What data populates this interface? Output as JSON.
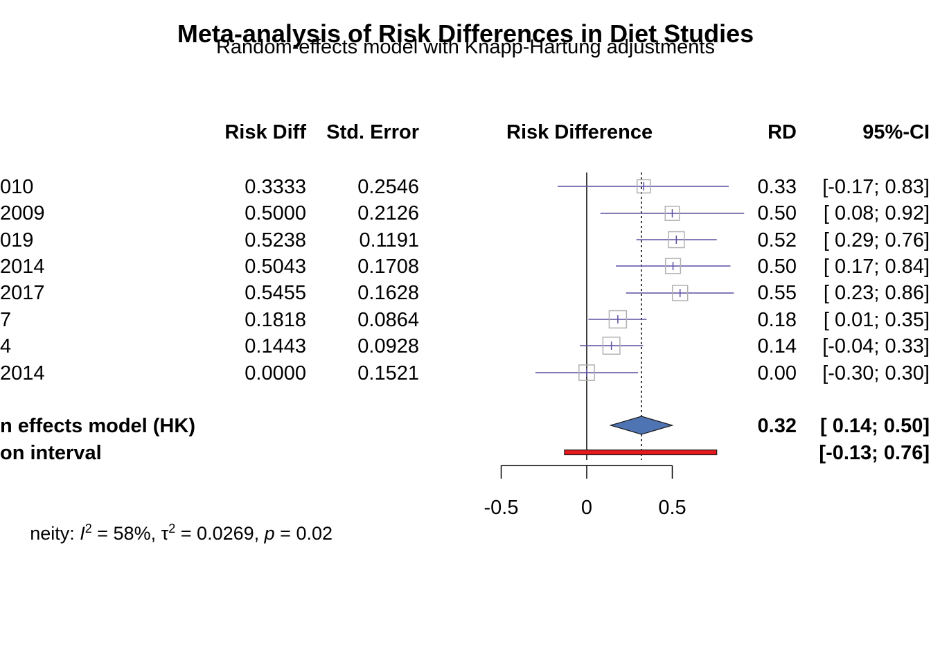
{
  "header": {
    "title": "Meta-analysis of Risk Differences in Diet Studies",
    "subtitle": "Random-effects model with Knapp-Hartung adjustments"
  },
  "columns": {
    "risk_diff": "Risk Diff",
    "std_error": "Std. Error",
    "plot": "Risk Difference",
    "rd": "RD",
    "ci": "95%-CI"
  },
  "studies": [
    {
      "label": "010",
      "risk_diff": "0.3333",
      "std_error": "0.2546",
      "rd": "0.33",
      "ci": "[-0.17; 0.83]"
    },
    {
      "label": " 2009",
      "risk_diff": "0.5000",
      "std_error": "0.2126",
      "rd": "0.50",
      "ci": "[ 0.08; 0.92]"
    },
    {
      "label": "019",
      "risk_diff": "0.5238",
      "std_error": "0.1191",
      "rd": "0.52",
      "ci": "[ 0.29; 0.76]"
    },
    {
      "label": "2014",
      "risk_diff": "0.5043",
      "std_error": "0.1708",
      "rd": "0.50",
      "ci": "[ 0.17; 0.84]"
    },
    {
      "label": "2017",
      "risk_diff": "0.5455",
      "std_error": "0.1628",
      "rd": "0.55",
      "ci": "[ 0.23; 0.86]"
    },
    {
      "label": "7",
      "risk_diff": "0.1818",
      "std_error": "0.0864",
      "rd": "0.18",
      "ci": "[ 0.01; 0.35]"
    },
    {
      "label": "4",
      "risk_diff": "0.1443",
      "std_error": "0.0928",
      "rd": "0.14",
      "ci": "[-0.04; 0.33]"
    },
    {
      "label": " 2014",
      "risk_diff": "0.0000",
      "std_error": "0.1521",
      "rd": "0.00",
      "ci": "[-0.30; 0.30]"
    }
  ],
  "summary": {
    "random_label": "n effects model (HK)",
    "random_rd": "0.32",
    "random_ci": "[ 0.14; 0.50]",
    "pred_label": "on interval",
    "pred_ci": "[-0.13; 0.76]"
  },
  "heterogeneity": {
    "prefix": "neity: ",
    "i2_symbol": "I",
    "i2_value": " = 58%, ",
    "tau_symbol": "τ",
    "tau_value": " = 0.0269, ",
    "p_symbol": "p",
    "p_value": " = 0.02"
  },
  "colors": {
    "ci_line": "#5a4fa0",
    "square_border": "#b0b0b0",
    "diamond_fill": "#4f74b3",
    "prediction_fill": "#e41a1c"
  },
  "chart_data": {
    "type": "forest",
    "xlabel": "Risk Difference",
    "xticks": [
      -0.5,
      0,
      0.5
    ],
    "xlim": [
      -0.5,
      0.5
    ],
    "reference_line": 0,
    "pooled_line": 0.32,
    "studies": [
      {
        "est": 0.3333,
        "lo": -0.17,
        "hi": 0.83,
        "weight": 0.7
      },
      {
        "est": 0.5,
        "lo": 0.08,
        "hi": 0.92,
        "weight": 0.8
      },
      {
        "est": 0.5238,
        "lo": 0.29,
        "hi": 0.76,
        "weight": 1.0
      },
      {
        "est": 0.5043,
        "lo": 0.17,
        "hi": 0.84,
        "weight": 0.9
      },
      {
        "est": 0.5455,
        "lo": 0.23,
        "hi": 0.86,
        "weight": 0.92
      },
      {
        "est": 0.1818,
        "lo": 0.01,
        "hi": 0.35,
        "weight": 1.15
      },
      {
        "est": 0.1443,
        "lo": -0.04,
        "hi": 0.33,
        "weight": 1.12
      },
      {
        "est": 0.0,
        "lo": -0.3,
        "hi": 0.3,
        "weight": 0.95
      }
    ],
    "random_effects": {
      "est": 0.32,
      "lo": 0.14,
      "hi": 0.5
    },
    "prediction_interval": {
      "lo": -0.13,
      "hi": 0.76
    }
  }
}
